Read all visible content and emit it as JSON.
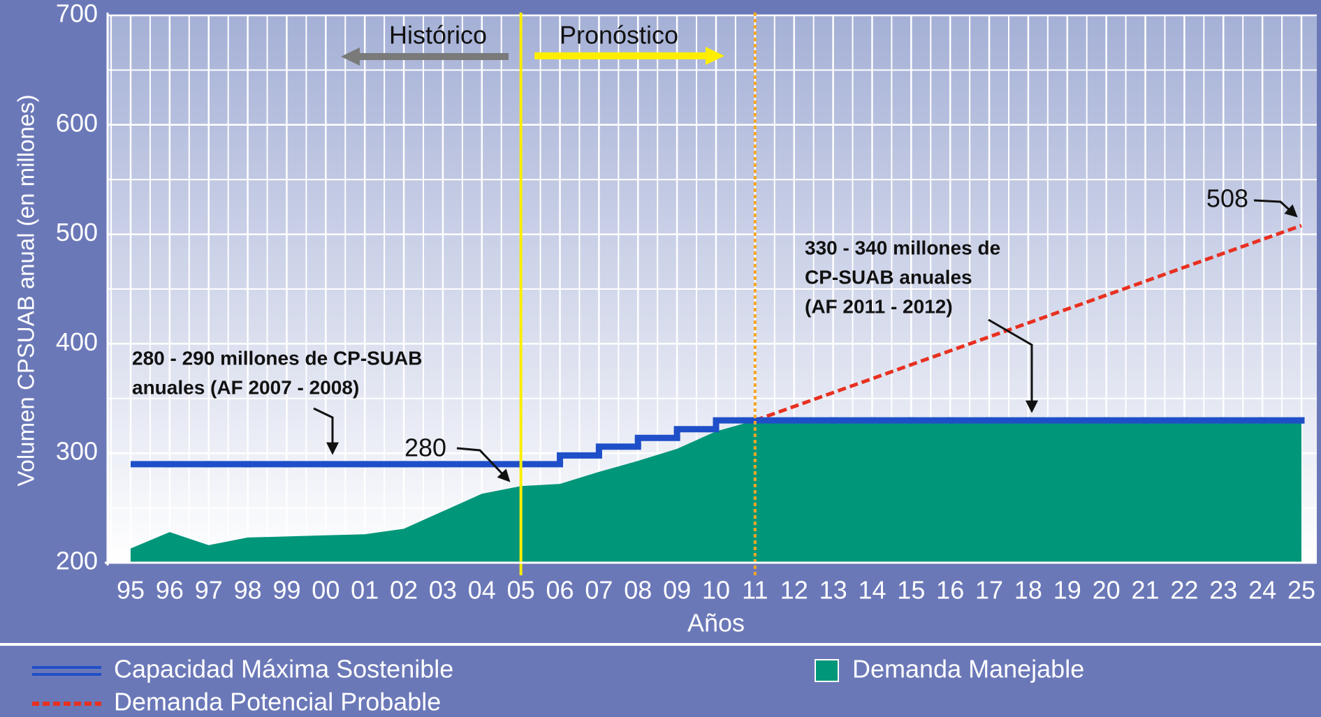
{
  "chart_data": {
    "type": "line",
    "ylabel": "Volumen CPSUAB anual (en millones)",
    "xlabel": "Años",
    "categories": [
      "95",
      "96",
      "97",
      "98",
      "99",
      "00",
      "01",
      "02",
      "03",
      "04",
      "05",
      "06",
      "07",
      "08",
      "09",
      "10",
      "11",
      "12",
      "13",
      "14",
      "15",
      "16",
      "17",
      "18",
      "19",
      "20",
      "21",
      "22",
      "23",
      "24",
      "25"
    ],
    "series": [
      {
        "name": "Capacidad Máxima Sostenible",
        "color": "#1f4fc8",
        "style": "step",
        "values": [
          290,
          290,
          290,
          290,
          290,
          290,
          290,
          290,
          290,
          290,
          290,
          298,
          306,
          314,
          322,
          330,
          330,
          330,
          330,
          330,
          330,
          330,
          330,
          330,
          330,
          330,
          330,
          330,
          330,
          330,
          330
        ]
      },
      {
        "name": "Demanda Potencial Probable",
        "color": "#e83020",
        "style": "dashed",
        "values": [
          null,
          null,
          null,
          null,
          null,
          null,
          null,
          null,
          null,
          null,
          null,
          null,
          null,
          null,
          null,
          null,
          330,
          342.7,
          355.4,
          368.1,
          380.9,
          393.6,
          406.3,
          419,
          431.7,
          444.4,
          457.1,
          469.9,
          482.6,
          495.3,
          508
        ]
      },
      {
        "name": "Demanda Manejable",
        "color": "#00967a",
        "style": "area",
        "values": [
          213,
          228,
          216,
          223,
          224,
          225,
          226,
          231,
          247,
          263,
          270,
          272,
          283,
          293,
          304,
          320,
          330,
          330,
          330,
          330,
          330,
          330,
          330,
          330,
          330,
          330,
          330,
          330,
          330,
          330,
          330
        ]
      }
    ],
    "ylim": [
      200,
      700
    ],
    "yticks": [
      200,
      300,
      400,
      500,
      600,
      700
    ],
    "grid": true,
    "reference_lines": [
      {
        "x": "05",
        "color": "#ffee00",
        "style": "solid"
      },
      {
        "x": "11",
        "color": "#f5a623",
        "style": "dotted"
      }
    ],
    "annotations": {
      "historico": "Histórico",
      "pronostico": "Pronóstico",
      "note1": [
        "280 - 290 millones de CP-SUAB",
        "anuales (AF 2007 - 2008)"
      ],
      "note2": [
        "330 - 340 millones de",
        "CP-SUAB anuales",
        "(AF 2011 - 2012)"
      ],
      "label280": "280",
      "label508": "508"
    }
  }
}
